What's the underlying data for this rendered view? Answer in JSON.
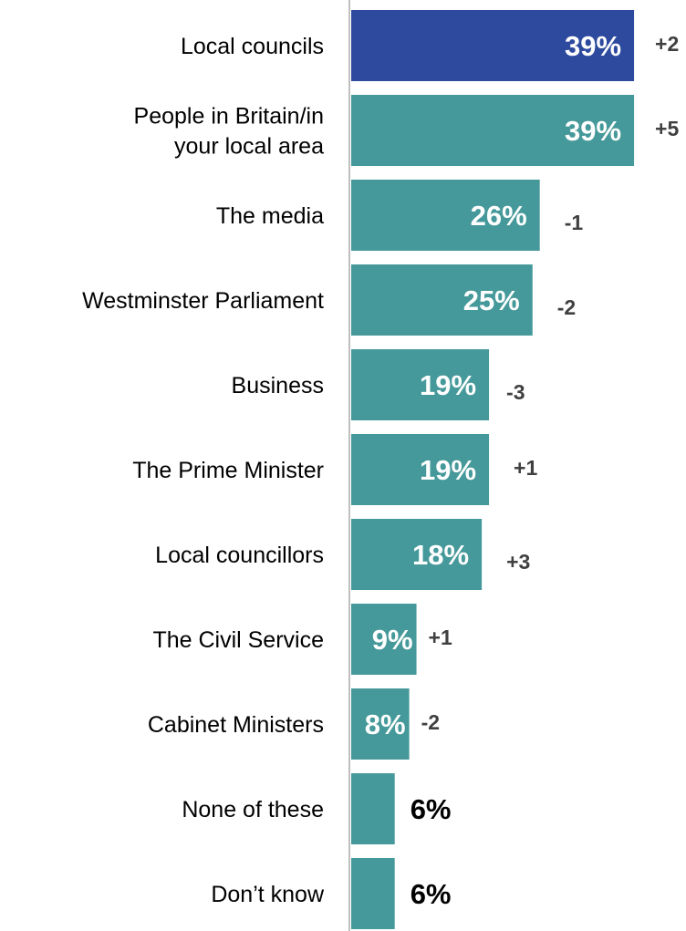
{
  "chart_data": {
    "type": "bar",
    "orientation": "horizontal",
    "categories": [
      "Local councils",
      "People in Britain/in your local area",
      "The media",
      "Westminster Parliament",
      "Business",
      "The Prime Minister",
      "Local councillors",
      "The Civil Service",
      "Cabinet Ministers",
      "None of these",
      "Don’t know"
    ],
    "category_lines": [
      [
        "Local councils"
      ],
      [
        "People in Britain/in",
        "your local area"
      ],
      [
        "The media"
      ],
      [
        "Westminster Parliament"
      ],
      [
        "Business"
      ],
      [
        "The Prime Minister"
      ],
      [
        "Local councillors"
      ],
      [
        "The Civil Service"
      ],
      [
        "Cabinet Ministers"
      ],
      [
        "None of these"
      ],
      [
        "Don’t know"
      ]
    ],
    "values": [
      39,
      39,
      26,
      25,
      19,
      19,
      18,
      9,
      8,
      6,
      6
    ],
    "value_labels": [
      "39%",
      "39%",
      "26%",
      "25%",
      "19%",
      "19%",
      "18%",
      "9%",
      "8%",
      "6%",
      "6%"
    ],
    "change_labels": [
      "+2",
      "+5",
      "-1",
      "-2",
      "-3",
      "+1",
      "+3",
      "+1",
      "-2",
      "",
      ""
    ],
    "highlight_index": 0,
    "colors": {
      "highlight": "#2e4a9e",
      "bar": "#46999a",
      "axis": "#bfbfbf"
    },
    "grid": false,
    "legend": "none"
  }
}
